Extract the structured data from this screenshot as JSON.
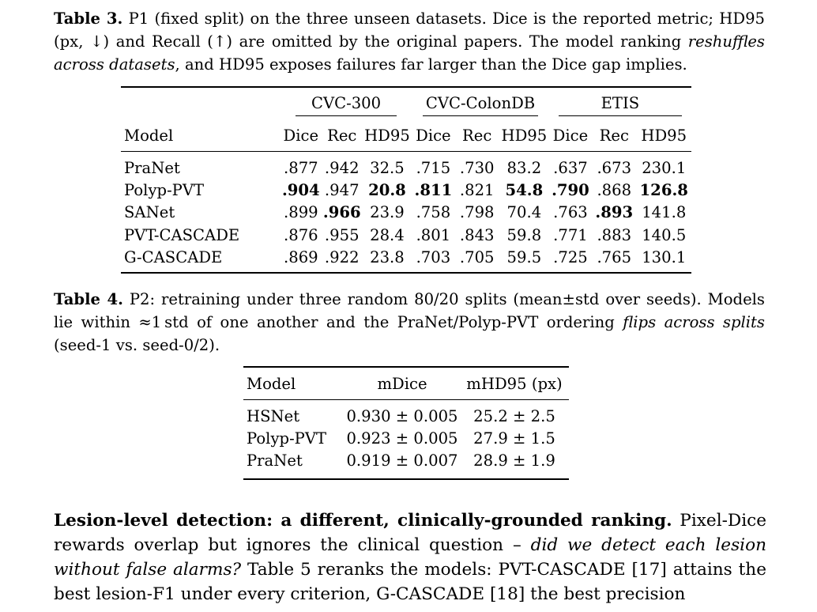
{
  "table3": {
    "caption": {
      "label": "Table 3.",
      "text1": " P1 (fixed split) on the three unseen datasets. Dice is the reported metric; HD95 (px, ↓) and Recall (↑) are omitted by the original papers. The model ranking ",
      "em1": "reshuffles across datasets",
      "text2": ", and HD95 exposes failures far larger than the Dice gap implies."
    },
    "groups": [
      "CVC-300",
      "CVC-ColonDB",
      "ETIS"
    ],
    "model_header": "Model",
    "subcols": [
      "Dice",
      "Rec",
      "HD95",
      "Dice",
      "Rec",
      "HD95",
      "Dice",
      "Rec",
      "HD95"
    ],
    "rows": [
      {
        "model": "PraNet",
        "values": [
          ".877",
          ".942",
          "32.5",
          ".715",
          ".730",
          "83.2",
          ".637",
          ".673",
          "230.1"
        ]
      },
      {
        "model": "Polyp-PVT",
        "values": [
          ".904",
          ".947",
          "20.8",
          ".811",
          ".821",
          "54.8",
          ".790",
          ".868",
          "126.8"
        ]
      },
      {
        "model": "SANet",
        "values": [
          ".899",
          ".966",
          "23.9",
          ".758",
          ".798",
          "70.4",
          ".763",
          ".893",
          "141.8"
        ]
      },
      {
        "model": "PVT-CASCADE",
        "values": [
          ".876",
          ".955",
          "28.4",
          ".801",
          ".843",
          "59.8",
          ".771",
          ".883",
          "140.5"
        ]
      },
      {
        "model": "G-CASCADE",
        "values": [
          ".869",
          ".922",
          "23.8",
          ".703",
          ".705",
          "59.5",
          ".725",
          ".765",
          "130.1"
        ]
      }
    ]
  },
  "table4": {
    "caption": {
      "label": "Table 4.",
      "text1": " P2: retraining under three random 80/20 splits (mean±std over seeds). Models lie within ≈1 std of one another and the PraNet/Polyp-PVT ordering ",
      "em1": "flips across splits",
      "text2": " (seed-1 vs. seed-0/2)."
    },
    "headers": [
      "Model",
      "mDice",
      "mHD95 (px)"
    ],
    "rows": [
      {
        "model": "HSNet",
        "mdice": "0.930 ± 0.005",
        "mhd95": "25.2 ± 2.5"
      },
      {
        "model": "Polyp-PVT",
        "mdice": "0.923 ± 0.005",
        "mhd95": "27.9 ± 1.5"
      },
      {
        "model": "PraNet",
        "mdice": "0.919 ± 0.007",
        "mhd95": "28.9 ± 1.9"
      }
    ]
  },
  "paragraph": {
    "heading": "Lesion-level detection: a different, clinically-grounded ranking.",
    "text1": " Pixel-Dice rewards overlap but ignores the clinical question – ",
    "em1": "did we detect each lesion without false alarms?",
    "text2": " Table 5 reranks the models: PVT-CASCADE [17] attains the best lesion-F1 under every criterion, G-CASCADE [18] the best precision"
  }
}
